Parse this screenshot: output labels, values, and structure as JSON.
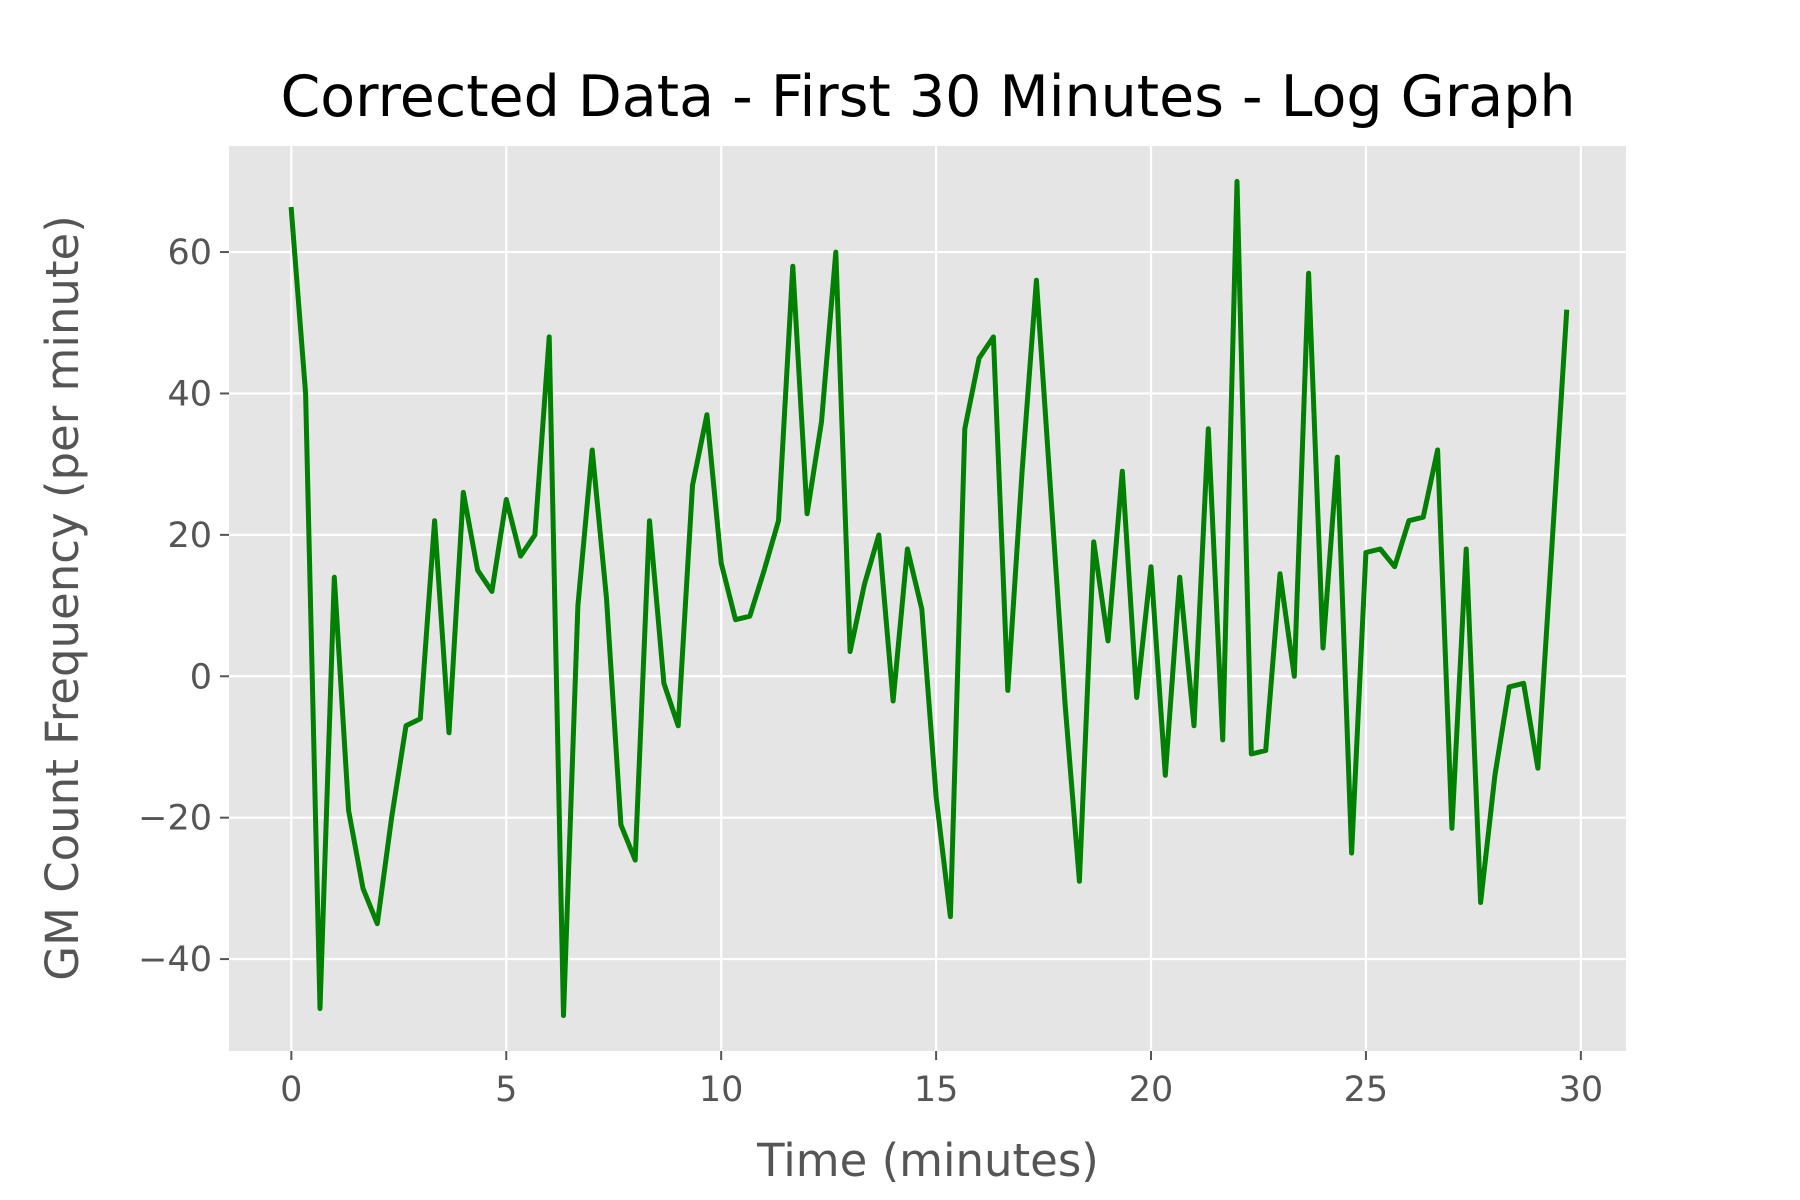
{
  "chart_data": {
    "type": "line",
    "title": "Corrected Data - First 30 Minutes - Log Graph",
    "xlabel": "Time (minutes)",
    "ylabel": "GM Count Frequency (per minute)",
    "xlim": [
      -1.45,
      31.05
    ],
    "ylim": [
      -53,
      75
    ],
    "xticks": [
      0,
      5,
      10,
      15,
      20,
      25,
      30
    ],
    "yticks": [
      -40,
      -20,
      0,
      20,
      40,
      60
    ],
    "xtick_labels": [
      "0",
      "5",
      "10",
      "15",
      "20",
      "25",
      "30"
    ],
    "ytick_labels": [
      "−40",
      "−20",
      "0",
      "20",
      "40",
      "60"
    ],
    "grid": true,
    "background_color": "#e5e5e5",
    "series": [
      {
        "color": "#008000",
        "x": [
          0,
          0.333,
          0.667,
          1,
          1.333,
          1.667,
          2,
          2.333,
          2.667,
          3,
          3.333,
          3.667,
          4,
          4.333,
          4.667,
          5,
          5.333,
          5.667,
          6,
          6.333,
          6.667,
          7,
          7.333,
          7.667,
          8,
          8.333,
          8.667,
          9,
          9.333,
          9.667,
          10,
          10.333,
          10.667,
          11,
          11.333,
          11.667,
          12,
          12.333,
          12.667,
          13,
          13.333,
          13.667,
          14,
          14.333,
          14.667,
          15,
          15.333,
          15.667,
          16,
          16.333,
          16.667,
          17,
          17.333,
          17.667,
          18,
          18.333,
          18.667,
          19,
          19.333,
          19.667,
          20,
          20.333,
          20.667,
          21,
          21.333,
          21.667,
          22,
          22.333,
          22.667,
          23,
          23.333,
          23.667,
          24,
          24.333,
          24.667,
          25,
          25.333,
          25.667,
          26,
          26.333,
          26.667,
          27,
          27.333,
          27.667,
          28,
          28.333,
          28.667,
          29,
          29.333,
          29.667
        ],
        "y": [
          66,
          40,
          -47,
          14,
          -19,
          -30,
          -35,
          -20,
          -7,
          -6,
          22,
          -8,
          26,
          15,
          12,
          25,
          17,
          20,
          48,
          -48,
          10,
          32,
          11,
          -21,
          -26,
          22,
          -1,
          -7,
          27,
          37,
          16,
          8,
          8.5,
          15,
          22,
          58,
          23,
          36,
          60,
          3.5,
          13,
          20,
          -3.5,
          18,
          9.5,
          -17,
          -34,
          35,
          45,
          48,
          -2,
          29,
          56,
          26,
          -4,
          -29,
          19,
          5,
          29,
          -3,
          15.5,
          -14,
          14,
          -7,
          35,
          -9,
          70,
          -11,
          -10.5,
          14.5,
          0,
          57,
          4,
          31,
          -25,
          17.5,
          18,
          15.5,
          22,
          22.5,
          32,
          -21.5,
          18,
          -32,
          -14,
          -1.5,
          -1,
          -13,
          19,
          51.5
        ]
      }
    ]
  }
}
